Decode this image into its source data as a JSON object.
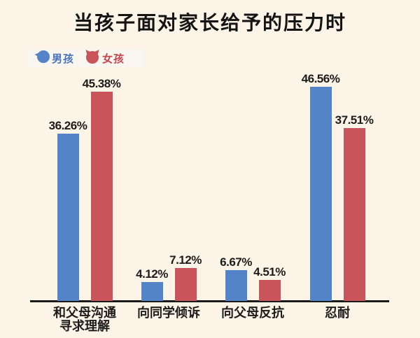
{
  "title": "当孩子面对家长给予的压力时",
  "legend": {
    "items": [
      {
        "label": "男孩",
        "color": "#5583c8",
        "text_color": "#4a73ba",
        "icon": "boy-ball-icon"
      },
      {
        "label": "女孩",
        "color": "#c9555a",
        "text_color": "#c4454d",
        "icon": "girl-ball-icon"
      }
    ]
  },
  "chart_data": {
    "type": "bar",
    "title": "当孩子面对家长给予的压力时",
    "categories": [
      "和父母沟通\n寻求理解",
      "向同学倾诉",
      "向父母反抗",
      "忍耐"
    ],
    "series": [
      {
        "name": "男孩",
        "color": "#5583c8",
        "values": [
          36.26,
          4.12,
          6.67,
          46.56
        ]
      },
      {
        "name": "女孩",
        "color": "#c9555a",
        "values": [
          45.38,
          7.12,
          4.51,
          37.51
        ]
      }
    ],
    "value_label_format": "percent_two_decimals",
    "unit": "%",
    "ylim": [
      0,
      50
    ],
    "grid": false,
    "y_axis_visible": false,
    "legend_position": "top-left",
    "colors": {
      "background": "#fcf4e6",
      "legend_background": "#f8f6ee",
      "axis": "#1a1a1a",
      "label_text": "#1c1c1c"
    }
  }
}
